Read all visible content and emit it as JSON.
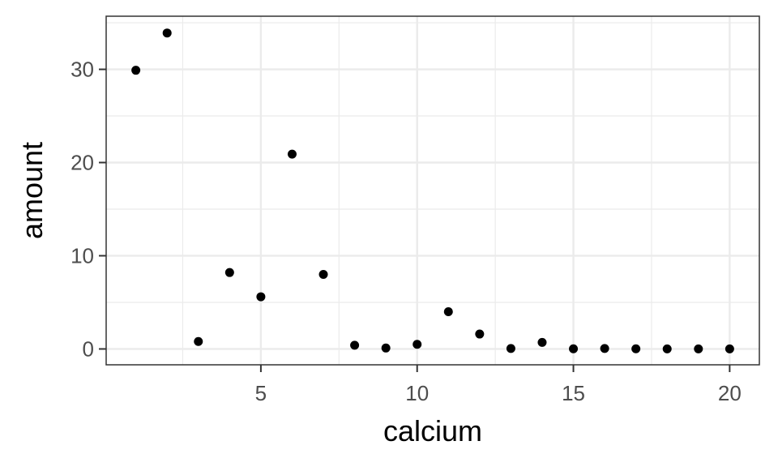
{
  "chart_data": {
    "type": "scatter",
    "title": "",
    "xlabel": "calcium",
    "ylabel": "amount",
    "xlim": [
      0.05,
      20.95
    ],
    "ylim": [
      -1.7,
      35.7
    ],
    "x_ticks": [
      5,
      10,
      15,
      20
    ],
    "y_ticks": [
      0,
      10,
      20,
      30
    ],
    "x_minor_ticks": [
      2.5,
      7.5,
      12.5,
      17.5
    ],
    "y_minor_ticks": [
      5,
      15,
      25,
      35
    ],
    "grid": true,
    "theme": "bw",
    "point_color": "#000000",
    "points": [
      {
        "x": 1,
        "y": 29.9
      },
      {
        "x": 2,
        "y": 33.9
      },
      {
        "x": 3,
        "y": 0.8
      },
      {
        "x": 4,
        "y": 8.2
      },
      {
        "x": 5,
        "y": 5.6
      },
      {
        "x": 6,
        "y": 20.9
      },
      {
        "x": 7,
        "y": 8.0
      },
      {
        "x": 8,
        "y": 0.4
      },
      {
        "x": 9,
        "y": 0.1
      },
      {
        "x": 10,
        "y": 0.5
      },
      {
        "x": 11,
        "y": 4.0
      },
      {
        "x": 12,
        "y": 1.6
      },
      {
        "x": 13,
        "y": 0.05
      },
      {
        "x": 14,
        "y": 0.7
      },
      {
        "x": 15,
        "y": 0.02
      },
      {
        "x": 16,
        "y": 0.05
      },
      {
        "x": 17,
        "y": 0.02
      },
      {
        "x": 18,
        "y": 0.01
      },
      {
        "x": 19,
        "y": 0.01
      },
      {
        "x": 20,
        "y": 0.01
      }
    ]
  }
}
